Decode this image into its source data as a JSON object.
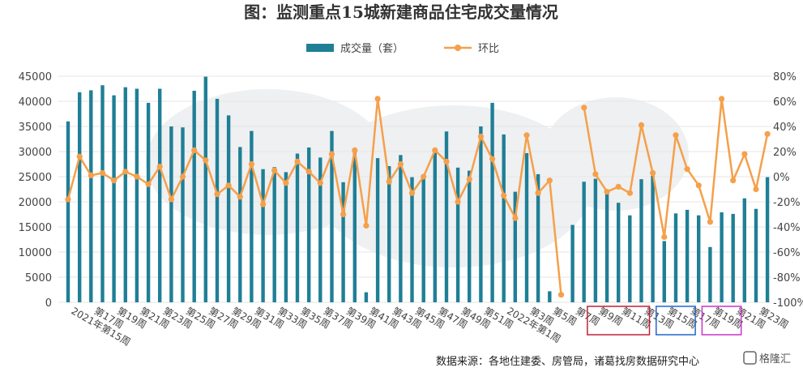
{
  "chart_data": {
    "type": "bar+line",
    "title": "图：监测重点15城新建商品住宅成交量情况",
    "source": "数据来源：各地住建委、房管局，诸葛找房数据研究中心",
    "watermark": "格隆汇",
    "legend": {
      "position": "top-center",
      "bar_label": "成交量（套）",
      "line_label": "环比"
    },
    "y_left": {
      "min": 0,
      "max": 45000,
      "ticks": [
        "0",
        "5000",
        "10000",
        "15000",
        "20000",
        "25000",
        "30000",
        "35000",
        "40000",
        "45000"
      ]
    },
    "y_right": {
      "min": -100,
      "max": 80,
      "ticks": [
        "-100%",
        "-80%",
        "-60%",
        "-40%",
        "-20%",
        "0%",
        "20%",
        "40%",
        "60%",
        "80%"
      ]
    },
    "x_tick_labels": [
      {
        "i": 0,
        "label": "2021年第15周"
      },
      {
        "i": 2,
        "label": "第17周"
      },
      {
        "i": 4,
        "label": "第19周"
      },
      {
        "i": 6,
        "label": "第21周"
      },
      {
        "i": 8,
        "label": "第23周"
      },
      {
        "i": 10,
        "label": "第25周"
      },
      {
        "i": 12,
        "label": "第27周"
      },
      {
        "i": 14,
        "label": "第29周"
      },
      {
        "i": 16,
        "label": "第31周"
      },
      {
        "i": 18,
        "label": "第33周"
      },
      {
        "i": 20,
        "label": "第35周"
      },
      {
        "i": 22,
        "label": "第37周"
      },
      {
        "i": 24,
        "label": "第39周"
      },
      {
        "i": 26,
        "label": "第41周"
      },
      {
        "i": 28,
        "label": "第43周"
      },
      {
        "i": 30,
        "label": "第45周"
      },
      {
        "i": 32,
        "label": "第47周"
      },
      {
        "i": 34,
        "label": "第49周"
      },
      {
        "i": 36,
        "label": "第51周"
      },
      {
        "i": 38,
        "label": "2022年第1周"
      },
      {
        "i": 40,
        "label": "第3周"
      },
      {
        "i": 42,
        "label": "第5周"
      },
      {
        "i": 44,
        "label": "第7周"
      },
      {
        "i": 46,
        "label": "第9周"
      },
      {
        "i": 48,
        "label": "第11周"
      },
      {
        "i": 50,
        "label": "第13周"
      },
      {
        "i": 52,
        "label": "第15周"
      },
      {
        "i": 54,
        "label": "第17周"
      },
      {
        "i": 56,
        "label": "第19周"
      },
      {
        "i": 58,
        "label": "第21周"
      },
      {
        "i": 60,
        "label": "第23周"
      }
    ],
    "bars": [
      36000,
      41800,
      42200,
      43200,
      41200,
      42800,
      42500,
      39700,
      42500,
      35000,
      34800,
      42100,
      44900,
      40500,
      37200,
      30900,
      34100,
      26500,
      26900,
      25900,
      29600,
      30800,
      28800,
      34100,
      23900,
      29800,
      2000,
      28700,
      27100,
      29300,
      24900,
      24700,
      29900,
      34000,
      26800,
      26200,
      35000,
      39700,
      33400,
      22000,
      29700,
      25500,
      2200,
      0,
      15400,
      24000,
      24600,
      22300,
      19800,
      17300,
      24500,
      25200,
      12200,
      17700,
      18400,
      17300,
      11000,
      17900,
      17600,
      20700,
      18600,
      24900
    ],
    "mom": [
      -18,
      16,
      1,
      3,
      -3,
      4,
      0,
      -6,
      8,
      -18,
      0,
      21,
      13,
      -14,
      -7,
      -16,
      10,
      -22,
      5,
      -5,
      12,
      4,
      -5,
      18,
      -30,
      21,
      -39,
      62,
      -4,
      10,
      -13,
      0,
      21,
      12,
      -20,
      -2,
      32,
      14,
      -15,
      -33,
      33,
      -13,
      -3,
      -94,
      null,
      55,
      2,
      -12,
      -8,
      -13,
      41,
      3,
      -48,
      33,
      6,
      -7,
      -36,
      62,
      -3,
      18,
      -10,
      34
    ],
    "highlight_boxes": [
      {
        "from_i": 46,
        "to_i": 50,
        "color": "#c0203a"
      },
      {
        "from_i": 52,
        "to_i": 54,
        "color": "#2266cc"
      },
      {
        "from_i": 56,
        "to_i": 58,
        "color": "#cc33cc"
      }
    ],
    "colors": {
      "bar": "#1f7f96",
      "line": "#f5a04a"
    }
  }
}
